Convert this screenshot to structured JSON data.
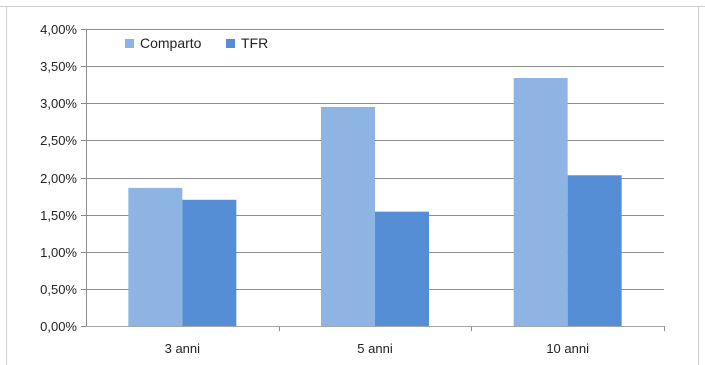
{
  "chart_data": {
    "type": "bar",
    "categories": [
      "3 anni",
      "5 anni",
      "10 anni"
    ],
    "series": [
      {
        "name": "Comparto",
        "values": [
          1.86,
          2.95,
          3.34
        ],
        "color": "#8db4e2"
      },
      {
        "name": "TFR",
        "values": [
          1.7,
          1.54,
          2.03
        ],
        "color": "#558ed5"
      }
    ],
    "ylim": [
      0,
      4
    ],
    "yticks": [
      "0,00%",
      "0,50%",
      "1,00%",
      "1,50%",
      "2,00%",
      "2,50%",
      "3,00%",
      "3,50%",
      "4,00%"
    ],
    "ytick_values": [
      0,
      0.5,
      1,
      1.5,
      2,
      2.5,
      3,
      3.5,
      4
    ],
    "grid": true,
    "legend": "top-left",
    "title": "",
    "xlabel": "",
    "ylabel": ""
  }
}
